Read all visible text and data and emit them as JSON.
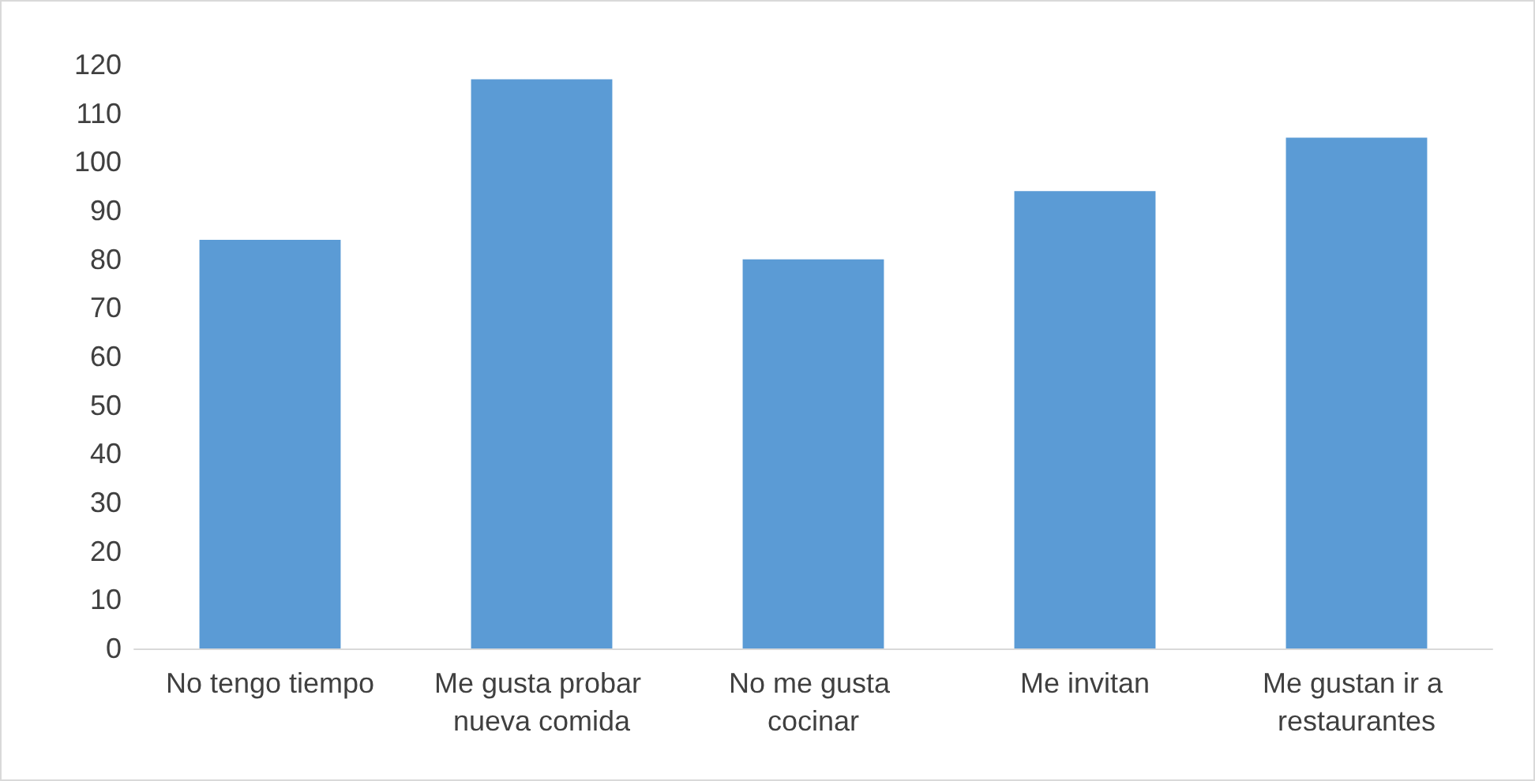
{
  "chart_data": {
    "type": "bar",
    "categories": [
      "No tengo tiempo",
      "Me gusta probar nueva comida",
      "No me gusta cocinar",
      "Me invitan",
      "Me gustan ir a restaurantes"
    ],
    "values": [
      84,
      117,
      80,
      94,
      105
    ],
    "color": "#5b9bd5",
    "ylim": [
      0,
      120
    ],
    "yticks": [
      0,
      10,
      20,
      30,
      40,
      50,
      60,
      70,
      80,
      90,
      100,
      110,
      120
    ]
  }
}
